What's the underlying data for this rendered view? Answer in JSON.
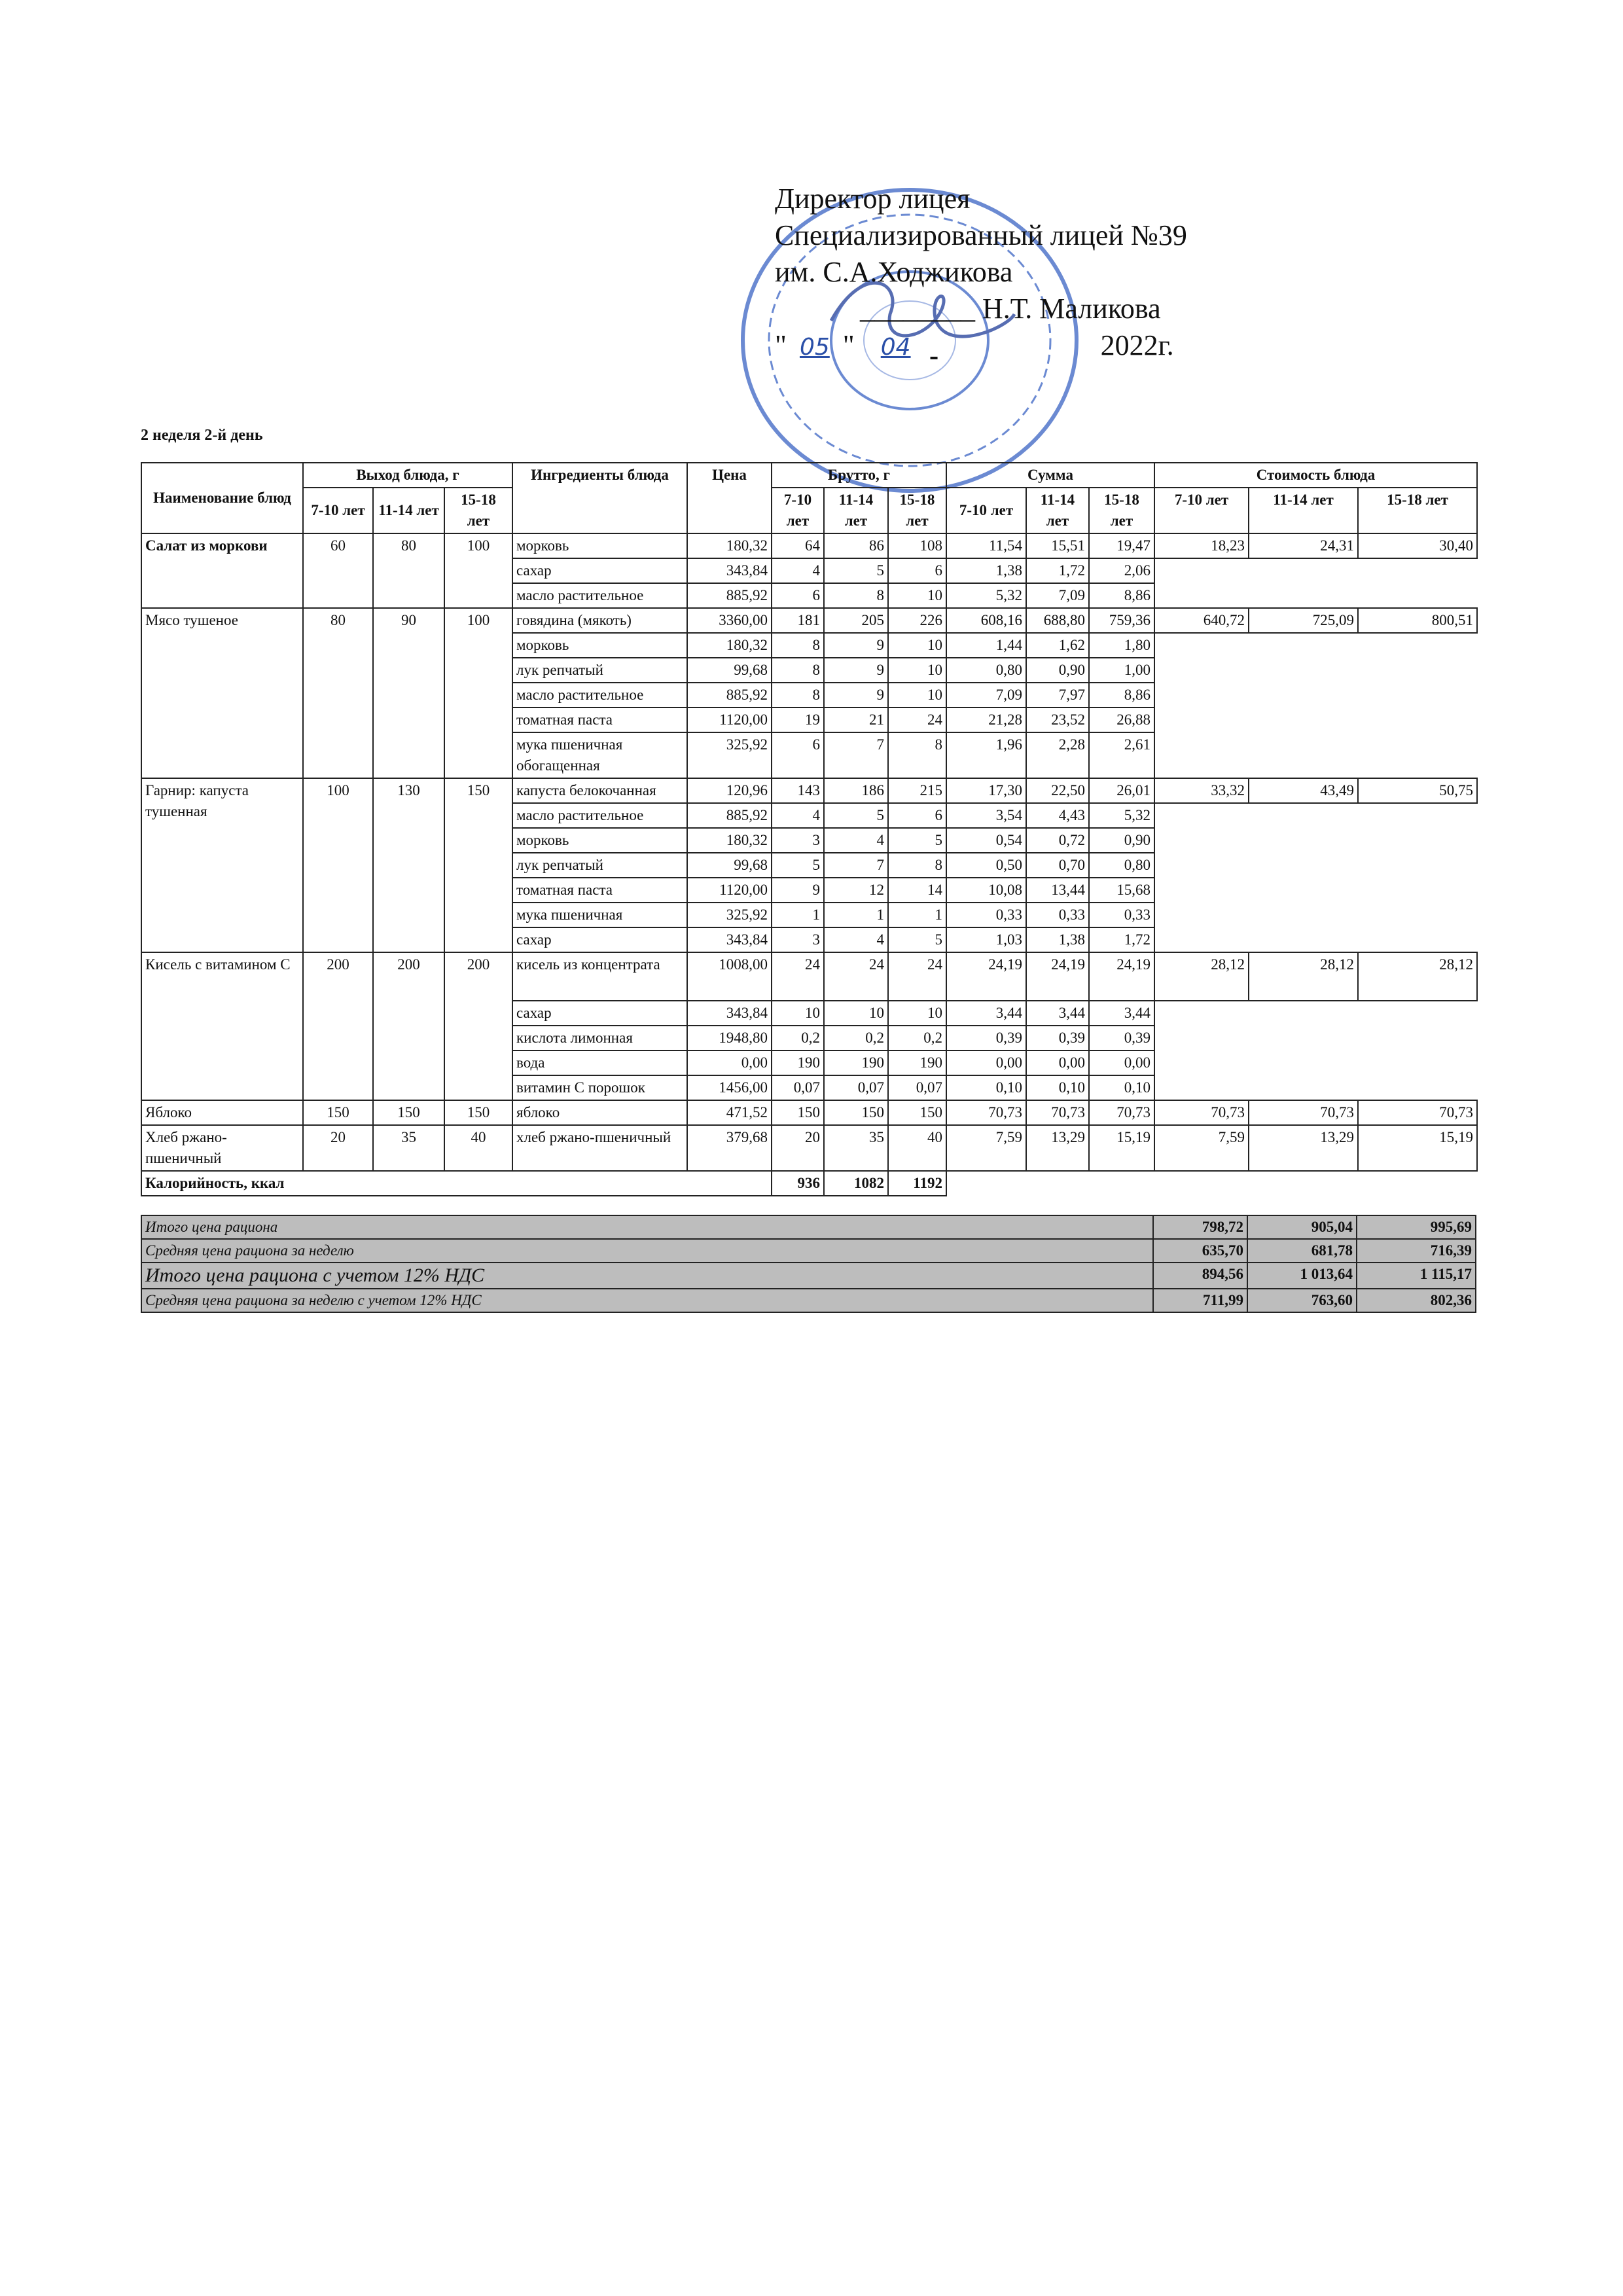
{
  "approval": {
    "line1": "Директор лицея",
    "line2": "Специализированный лицей №39",
    "line3": "им. С.А.Ходжикова",
    "signature_blank": "________",
    "signer": "Н.Т. Маликова",
    "date_open": "\"",
    "day": "05",
    "date_mid": "\"",
    "month": "04",
    "year": "2022г."
  },
  "week_label": "2 неделя 2-й день",
  "headers": {
    "name": "Наименование блюд",
    "output": "Выход блюда, г",
    "ingredients": "Ингредиенты блюда",
    "price": "Цена",
    "brutto": "Брутто, г",
    "sum": "Сумма",
    "cost": "Стоимость блюда",
    "ages": [
      "7-10 лет",
      "11-14 лет",
      "15-18 лет"
    ]
  },
  "dishes": [
    {
      "name": "Салат из моркови",
      "bold": true,
      "output": [
        "60",
        "80",
        "100"
      ],
      "cost": [
        "18,23",
        "24,31",
        "30,40"
      ],
      "ingredients": [
        {
          "name": "морковь",
          "price": "180,32",
          "brutto": [
            "64",
            "86",
            "108"
          ],
          "sum": [
            "11,54",
            "15,51",
            "19,47"
          ]
        },
        {
          "name": "сахар",
          "price": "343,84",
          "brutto": [
            "4",
            "5",
            "6"
          ],
          "sum": [
            "1,38",
            "1,72",
            "2,06"
          ]
        },
        {
          "name": "масло растительное",
          "price": "885,92",
          "brutto": [
            "6",
            "8",
            "10"
          ],
          "sum": [
            "5,32",
            "7,09",
            "8,86"
          ]
        }
      ]
    },
    {
      "name": "Мясо тушеное",
      "bold": false,
      "output": [
        "80",
        "90",
        "100"
      ],
      "cost": [
        "640,72",
        "725,09",
        "800,51"
      ],
      "ingredients": [
        {
          "name": "говядина (мякоть)",
          "price": "3360,00",
          "brutto": [
            "181",
            "205",
            "226"
          ],
          "sum": [
            "608,16",
            "688,80",
            "759,36"
          ]
        },
        {
          "name": "морковь",
          "price": "180,32",
          "brutto": [
            "8",
            "9",
            "10"
          ],
          "sum": [
            "1,44",
            "1,62",
            "1,80"
          ]
        },
        {
          "name": "лук репчатый",
          "price": "99,68",
          "brutto": [
            "8",
            "9",
            "10"
          ],
          "sum": [
            "0,80",
            "0,90",
            "1,00"
          ]
        },
        {
          "name": "масло растительное",
          "price": "885,92",
          "brutto": [
            "8",
            "9",
            "10"
          ],
          "sum": [
            "7,09",
            "7,97",
            "8,86"
          ]
        },
        {
          "name": "томатная паста",
          "price": "1120,00",
          "brutto": [
            "19",
            "21",
            "24"
          ],
          "sum": [
            "21,28",
            "23,52",
            "26,88"
          ]
        },
        {
          "name": "мука пшеничная обогащенная",
          "price": "325,92",
          "brutto": [
            "6",
            "7",
            "8"
          ],
          "sum": [
            "1,96",
            "2,28",
            "2,61"
          ]
        }
      ]
    },
    {
      "name": "Гарнир: капуста тушенная",
      "bold": false,
      "output": [
        "100",
        "130",
        "150"
      ],
      "cost": [
        "33,32",
        "43,49",
        "50,75"
      ],
      "ingredients": [
        {
          "name": "капуста белокочанная",
          "price": "120,96",
          "brutto": [
            "143",
            "186",
            "215"
          ],
          "sum": [
            "17,30",
            "22,50",
            "26,01"
          ]
        },
        {
          "name": "масло растительное",
          "price": "885,92",
          "brutto": [
            "4",
            "5",
            "6"
          ],
          "sum": [
            "3,54",
            "4,43",
            "5,32"
          ]
        },
        {
          "name": "морковь",
          "price": "180,32",
          "brutto": [
            "3",
            "4",
            "5"
          ],
          "sum": [
            "0,54",
            "0,72",
            "0,90"
          ]
        },
        {
          "name": "лук репчатый",
          "price": "99,68",
          "brutto": [
            "5",
            "7",
            "8"
          ],
          "sum": [
            "0,50",
            "0,70",
            "0,80"
          ]
        },
        {
          "name": "томатная паста",
          "price": "1120,00",
          "brutto": [
            "9",
            "12",
            "14"
          ],
          "sum": [
            "10,08",
            "13,44",
            "15,68"
          ]
        },
        {
          "name": "мука пшеничная",
          "price": "325,92",
          "brutto": [
            "1",
            "1",
            "1"
          ],
          "sum": [
            "0,33",
            "0,33",
            "0,33"
          ]
        },
        {
          "name": "сахар",
          "price": "343,84",
          "brutto": [
            "3",
            "4",
            "5"
          ],
          "sum": [
            "1,03",
            "1,38",
            "1,72"
          ]
        }
      ]
    },
    {
      "name": "Кисель с витамином С",
      "bold": false,
      "output": [
        "200",
        "200",
        "200"
      ],
      "cost": [
        "28,12",
        "28,12",
        "28,12"
      ],
      "ingredients": [
        {
          "name": "кисель из концентрата",
          "price": "1008,00",
          "brutto": [
            "24",
            "24",
            "24"
          ],
          "sum": [
            "24,19",
            "24,19",
            "24,19"
          ],
          "tall": true
        },
        {
          "name": "сахар",
          "price": "343,84",
          "brutto": [
            "10",
            "10",
            "10"
          ],
          "sum": [
            "3,44",
            "3,44",
            "3,44"
          ]
        },
        {
          "name": "кислота лимонная",
          "price": "1948,80",
          "brutto": [
            "0,2",
            "0,2",
            "0,2"
          ],
          "sum": [
            "0,39",
            "0,39",
            "0,39"
          ]
        },
        {
          "name": "вода",
          "price": "0,00",
          "brutto": [
            "190",
            "190",
            "190"
          ],
          "sum": [
            "0,00",
            "0,00",
            "0,00"
          ]
        },
        {
          "name": "витамин С порошок",
          "price": "1456,00",
          "brutto": [
            "0,07",
            "0,07",
            "0,07"
          ],
          "sum": [
            "0,10",
            "0,10",
            "0,10"
          ]
        }
      ]
    },
    {
      "name": "Яблоко",
      "bold": false,
      "output": [
        "150",
        "150",
        "150"
      ],
      "cost": [
        "70,73",
        "70,73",
        "70,73"
      ],
      "ingredients": [
        {
          "name": "яблоко",
          "price": "471,52",
          "brutto": [
            "150",
            "150",
            "150"
          ],
          "sum": [
            "70,73",
            "70,73",
            "70,73"
          ]
        }
      ]
    },
    {
      "name": "Хлеб ржано-пшеничный",
      "bold": false,
      "output": [
        "20",
        "35",
        "40"
      ],
      "cost": [
        "7,59",
        "13,29",
        "15,19"
      ],
      "ingredients": [
        {
          "name": "хлеб ржано-пшеничный",
          "price": "379,68",
          "brutto": [
            "20",
            "35",
            "40"
          ],
          "sum": [
            "7,59",
            "13,29",
            "15,19"
          ]
        }
      ]
    }
  ],
  "calories": {
    "label": "Калорийность, ккал",
    "values": [
      "936",
      "1082",
      "1192"
    ]
  },
  "summary": [
    {
      "label": "Итого цена рациона",
      "values": [
        "798,72",
        "905,04",
        "995,69"
      ]
    },
    {
      "label": "Средняя цена рациона за неделю",
      "values": [
        "635,70",
        "681,78",
        "716,39"
      ]
    },
    {
      "label": "Итого цена рациона с учетом 12% НДС",
      "values": [
        "894,56",
        "1 013,64",
        "1 115,17"
      ],
      "big": true
    },
    {
      "label": "Средняя цена рациона за неделю с учетом 12% НДС",
      "values": [
        "711,99",
        "763,60",
        "802,36"
      ]
    }
  ],
  "colors": {
    "stamp": "#3a63c4",
    "summary_bg": "#bdbdbd"
  }
}
